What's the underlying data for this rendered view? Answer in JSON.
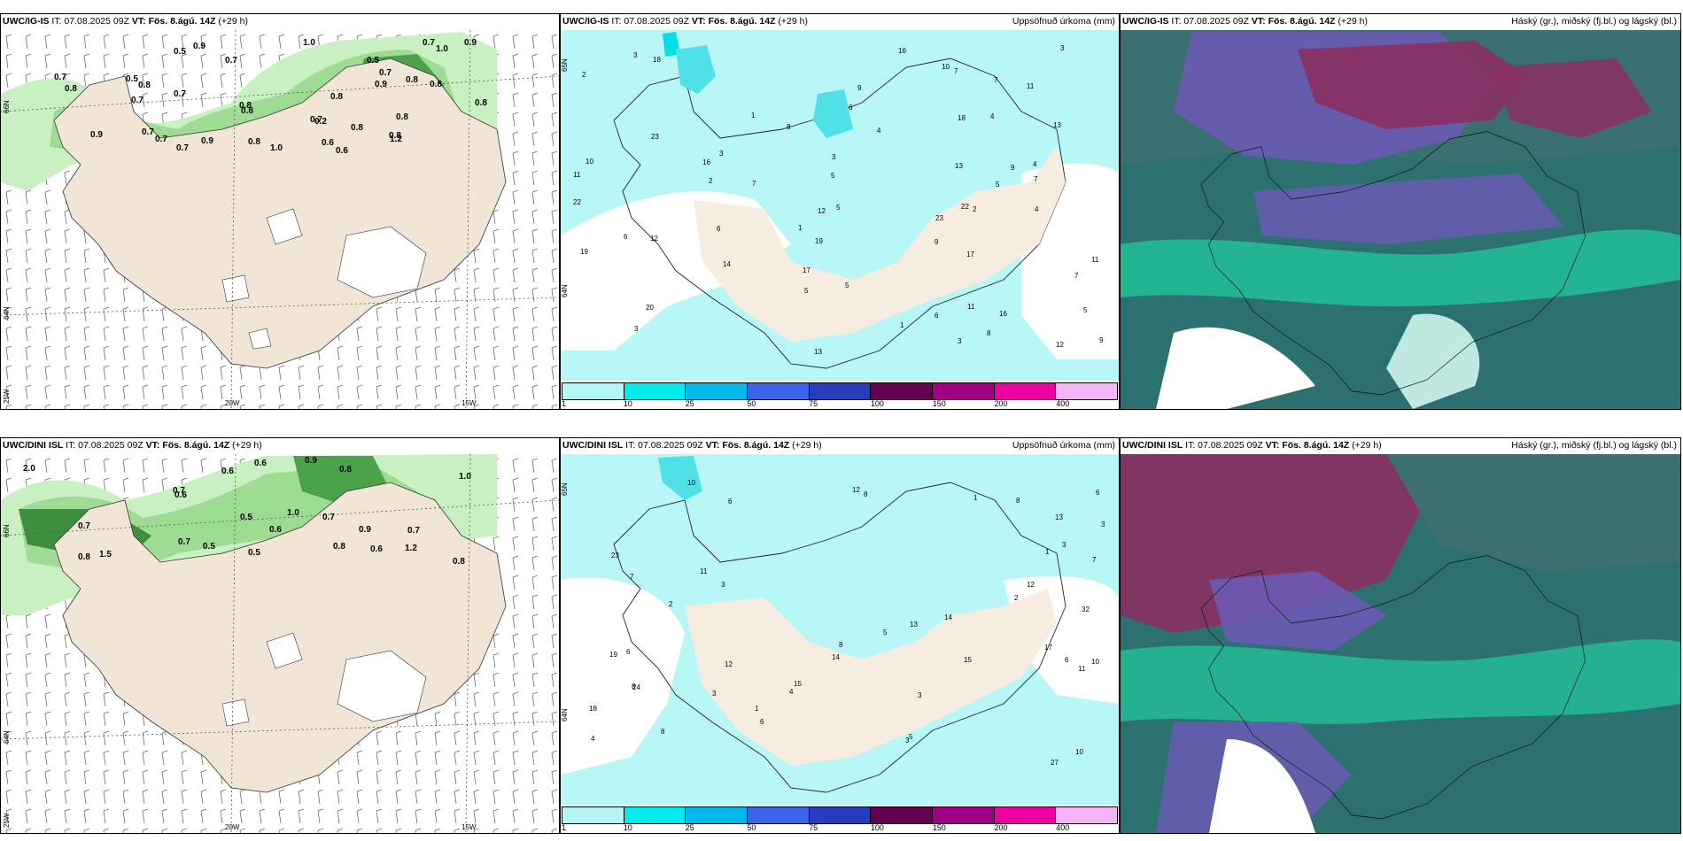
{
  "colorbar": {
    "ticks": [
      "1",
      "10",
      "25",
      "50",
      "75",
      "100",
      "150",
      "200",
      "400"
    ],
    "colors": [
      "#b4f6f6",
      "#00ebeb",
      "#00b9eb",
      "#3c64eb",
      "#283cbe",
      "#640050",
      "#a00082",
      "#eb00a0",
      "#f5b4f5"
    ]
  },
  "rows": [
    {
      "wind": {
        "header_model": "UWC/IG-IS",
        "header_it": "IT: 07.08.2025 09Z",
        "header_vt": "VT: Fös. 8.ágú. 14Z",
        "header_lead": "(+29 h)",
        "lat_labels": [
          "66N",
          "64N",
          "25W"
        ],
        "lon_labels": [
          "20W",
          "15W"
        ],
        "values": [
          "0.6",
          "0.5",
          "0.7",
          "0.5",
          "0.8",
          "0.6",
          "0.8",
          "0.7",
          "0.8",
          "0.7",
          "0.9",
          "0.7",
          "0.8",
          "0.7",
          "0.9",
          "0.7",
          "0.8",
          "1.0",
          "0.8",
          "0.8",
          "0.8",
          "0.2",
          "0.7",
          "1.2",
          "0.8",
          "0.7",
          "0.7",
          "0.8",
          "1.0",
          "0.7",
          "0.8",
          "0.9",
          "0.5",
          "0.9",
          "0.9",
          "0.8",
          "1.0"
        ]
      },
      "precip": {
        "header_model": "UWC/IG-IS",
        "header_it": "IT: 07.08.2025 09Z",
        "header_vt": "VT: Fös. 8.ágú. 14Z",
        "header_lead": "(+29 h)",
        "title_right": "Uppsöfnuð úrkoma (mm)",
        "lat_labels": [
          "65N",
          "64N"
        ],
        "values": [
          "9",
          "11",
          "9",
          "7",
          "6",
          "4",
          "4",
          "3",
          "5",
          "8",
          "22",
          "23",
          "19",
          "17",
          "14",
          "12",
          "11",
          "6",
          "7",
          "8",
          "19",
          "22",
          "13",
          "10",
          "7",
          "20",
          "23",
          "18",
          "9",
          "12",
          "13",
          "16",
          "10",
          "11",
          "7",
          "3",
          "4",
          "5",
          "2",
          "3",
          "1",
          "6",
          "9",
          "13",
          "11",
          "1",
          "3",
          "3",
          "12",
          "18",
          "17",
          "16",
          "5",
          "16",
          "2",
          "2",
          "7",
          "3",
          "5",
          "5",
          "4",
          "5",
          "6",
          "1"
        ]
      },
      "cloud": {
        "header_model": "UWC/IG-IS",
        "header_it": "IT: 07.08.2025 09Z",
        "header_vt": "VT: Fös. 8.ágú. 14Z",
        "header_lead": "(+29 h)",
        "title_right": "Háský (gr.), miðský (fj.bl.) og lágský (bl.)"
      }
    },
    {
      "wind": {
        "header_model": "UWC/DINI ISL",
        "header_it": "IT: 07.08.2025 09Z",
        "header_vt": "VT: Fös. 8.ágú. 14Z",
        "header_lead": "(+29 h)",
        "lat_labels": [
          "66N",
          "64N",
          "25W"
        ],
        "lon_labels": [
          "20W",
          "15W"
        ],
        "values": [
          "0.8",
          "0.7",
          "1.0",
          "0.6",
          "0.6",
          "0.9",
          "1.2",
          "0.8",
          "0.6",
          "0.7",
          "0.8",
          "0.6",
          "0.5",
          "0.6",
          "0.8",
          "0.7",
          "0.9",
          "0.7",
          "0.5",
          "1.0",
          "2.0",
          "1.5",
          "0.5",
          "0.7"
        ]
      },
      "precip": {
        "header_model": "UWC/DINI ISL",
        "header_it": "IT: 07.08.2025 09Z",
        "header_vt": "VT: Fös. 8.ágú. 14Z",
        "header_lead": "(+29 h)",
        "title_right": "Uppsöfnuð úrkoma (mm)",
        "lat_labels": [
          "65N",
          "64N"
        ],
        "values": [
          "11",
          "24",
          "23",
          "6",
          "6",
          "32",
          "27",
          "12",
          "8",
          "10",
          "12",
          "18",
          "13",
          "7",
          "17",
          "14",
          "10",
          "19",
          "8",
          "12",
          "13",
          "8",
          "10",
          "15",
          "3",
          "5",
          "1",
          "3",
          "6",
          "14",
          "11",
          "2",
          "8",
          "15",
          "7",
          "3",
          "3",
          "3",
          "4",
          "6",
          "5",
          "2",
          "1",
          "8",
          "3",
          "6",
          "1",
          "4"
        ]
      },
      "cloud": {
        "header_model": "UWC/DINI ISL",
        "header_it": "IT: 07.08.2025 09Z",
        "header_vt": "VT: Fös. 8.ágú. 14Z",
        "header_lead": "(+29 h)",
        "title_right": "Háský (gr.), miðský (fj.bl.) og lágský (bl.)"
      }
    }
  ]
}
